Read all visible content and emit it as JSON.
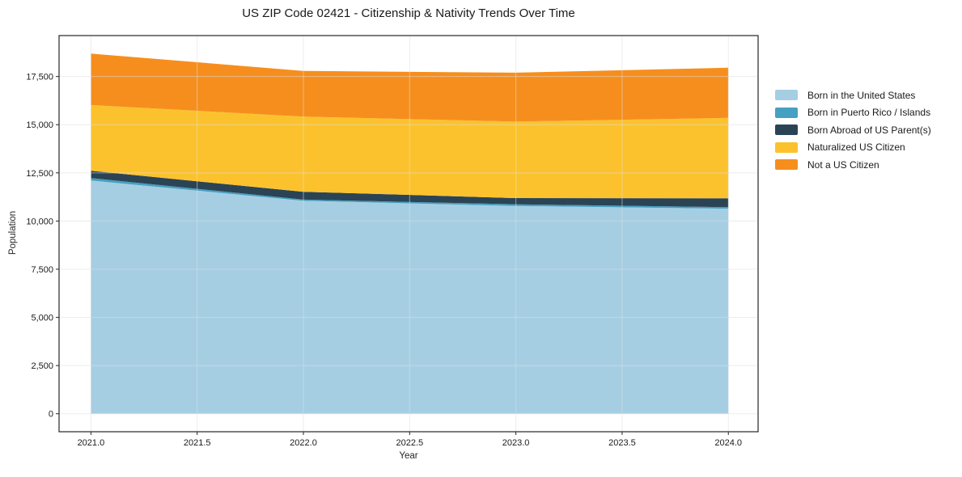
{
  "title": "US ZIP Code 02421 - Citizenship & Nativity Trends Over Time",
  "colors": {
    "background": "#ffffff",
    "text": "#1a1a1a",
    "spine": "#262626",
    "grid": "#dedede"
  },
  "chart_data": {
    "type": "area",
    "stacked": true,
    "title": "US ZIP Code 02421 - Citizenship & Nativity Trends Over Time",
    "xlabel": "Year",
    "ylabel": "Population",
    "grid": true,
    "legend_position": "right",
    "x": [
      2021,
      2022,
      2023,
      2024
    ],
    "series": [
      {
        "name": "Born in the United States",
        "color": "#A6CEE3",
        "values": [
          12100,
          11050,
          10780,
          10640
        ]
      },
      {
        "name": "Born in Puerto Rico / Islands",
        "color": "#46A0C2",
        "values": [
          130,
          60,
          90,
          80
        ]
      },
      {
        "name": "Born Abroad of US Parent(s)",
        "color": "#2B4455",
        "values": [
          380,
          410,
          320,
          460
        ]
      },
      {
        "name": "Naturalized US Citizen",
        "color": "#FCC22D",
        "values": [
          3410,
          3900,
          3970,
          4175
        ]
      },
      {
        "name": "Not a US Citizen",
        "color": "#F68E1E",
        "values": [
          2670,
          2370,
          2540,
          2600
        ]
      }
    ],
    "totals": [
      18690,
      17790,
      17700,
      17955
    ],
    "x_ticks": [
      "2021.0",
      "2021.5",
      "2022.0",
      "2022.5",
      "2023.0",
      "2023.5",
      "2024.0"
    ],
    "x_tick_values": [
      2021,
      2021.5,
      2022,
      2022.5,
      2023,
      2023.5,
      2024
    ],
    "y_ticks": [
      "0",
      "2,500",
      "5,000",
      "7,500",
      "10,000",
      "12,500",
      "15,000",
      "17,500"
    ],
    "y_tick_values": [
      0,
      2500,
      5000,
      7500,
      10000,
      12500,
      15000,
      17500
    ],
    "xlim": [
      2020.85,
      2024.14
    ],
    "ylim": [
      -934,
      19625
    ]
  }
}
